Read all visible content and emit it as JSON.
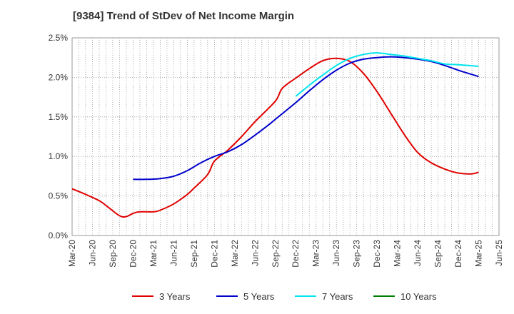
{
  "chart_data": {
    "type": "line",
    "title": "[9384]  Trend of StDev of Net Income Margin",
    "xlabel": "",
    "ylabel": "",
    "x_ticks": [
      "Mar-20",
      "Jun-20",
      "Sep-20",
      "Dec-20",
      "Mar-21",
      "Jun-21",
      "Sep-21",
      "Dec-21",
      "Mar-22",
      "Jun-22",
      "Sep-22",
      "Dec-22",
      "Mar-23",
      "Jun-23",
      "Sep-23",
      "Dec-23",
      "Mar-24",
      "Jun-24",
      "Sep-24",
      "Dec-24",
      "Mar-25",
      "Jun-25"
    ],
    "y_ticks": [
      "0.0%",
      "0.5%",
      "1.0%",
      "1.5%",
      "2.0%",
      "2.5%"
    ],
    "ylim": [
      0,
      2.5
    ],
    "grid": true,
    "legend_position": "bottom",
    "series": [
      {
        "name": "3 Years",
        "color": "#e00000",
        "points": [
          {
            "x": "Mar-20",
            "y": 0.59
          },
          {
            "x": "May-20",
            "y": 0.52
          },
          {
            "x": "Jul-20",
            "y": 0.44
          },
          {
            "x": "Aug-20",
            "y": 0.38
          },
          {
            "x": "Oct-20",
            "y": 0.25
          },
          {
            "x": "Nov-20",
            "y": 0.24
          },
          {
            "x": "Dec-20",
            "y": 0.28
          },
          {
            "x": "Jan-21",
            "y": 0.3
          },
          {
            "x": "Mar-21",
            "y": 0.3
          },
          {
            "x": "Apr-21",
            "y": 0.32
          },
          {
            "x": "Jun-21",
            "y": 0.4
          },
          {
            "x": "Aug-21",
            "y": 0.52
          },
          {
            "x": "Sep-21",
            "y": 0.6
          },
          {
            "x": "Nov-21",
            "y": 0.77
          },
          {
            "x": "Dec-21",
            "y": 0.94
          },
          {
            "x": "Feb-22",
            "y": 1.08
          },
          {
            "x": "Apr-22",
            "y": 1.25
          },
          {
            "x": "Jun-22",
            "y": 1.44
          },
          {
            "x": "Sep-22",
            "y": 1.7
          },
          {
            "x": "Oct-22",
            "y": 1.86
          },
          {
            "x": "Dec-22",
            "y": 1.99
          },
          {
            "x": "Feb-23",
            "y": 2.11
          },
          {
            "x": "Apr-23",
            "y": 2.21
          },
          {
            "x": "Jun-23",
            "y": 2.24
          },
          {
            "x": "Aug-23",
            "y": 2.2
          },
          {
            "x": "Oct-23",
            "y": 2.05
          },
          {
            "x": "Dec-23",
            "y": 1.82
          },
          {
            "x": "Feb-24",
            "y": 1.55
          },
          {
            "x": "Apr-24",
            "y": 1.28
          },
          {
            "x": "Jun-24",
            "y": 1.05
          },
          {
            "x": "Aug-24",
            "y": 0.92
          },
          {
            "x": "Oct-24",
            "y": 0.84
          },
          {
            "x": "Dec-24",
            "y": 0.79
          },
          {
            "x": "Feb-25",
            "y": 0.78
          },
          {
            "x": "Mar-25",
            "y": 0.8
          }
        ]
      },
      {
        "name": "5 Years",
        "color": "#0000cc",
        "points": [
          {
            "x": "Dec-20",
            "y": 0.71
          },
          {
            "x": "Feb-21",
            "y": 0.71
          },
          {
            "x": "Apr-21",
            "y": 0.72
          },
          {
            "x": "Jun-21",
            "y": 0.75
          },
          {
            "x": "Aug-21",
            "y": 0.82
          },
          {
            "x": "Oct-21",
            "y": 0.92
          },
          {
            "x": "Dec-21",
            "y": 1.0
          },
          {
            "x": "Feb-22",
            "y": 1.06
          },
          {
            "x": "Apr-22",
            "y": 1.15
          },
          {
            "x": "Jun-22",
            "y": 1.27
          },
          {
            "x": "Aug-22",
            "y": 1.4
          },
          {
            "x": "Oct-22",
            "y": 1.54
          },
          {
            "x": "Dec-22",
            "y": 1.68
          },
          {
            "x": "Feb-23",
            "y": 1.83
          },
          {
            "x": "Apr-23",
            "y": 1.97
          },
          {
            "x": "Jun-23",
            "y": 2.09
          },
          {
            "x": "Aug-23",
            "y": 2.18
          },
          {
            "x": "Oct-23",
            "y": 2.23
          },
          {
            "x": "Dec-23",
            "y": 2.25
          },
          {
            "x": "Feb-24",
            "y": 2.26
          },
          {
            "x": "Apr-24",
            "y": 2.25
          },
          {
            "x": "Jun-24",
            "y": 2.23
          },
          {
            "x": "Aug-24",
            "y": 2.2
          },
          {
            "x": "Oct-24",
            "y": 2.15
          },
          {
            "x": "Dec-24",
            "y": 2.09
          },
          {
            "x": "Mar-25",
            "y": 2.01
          }
        ]
      },
      {
        "name": "7 Years",
        "color": "#00e5ee",
        "points": [
          {
            "x": "Dec-22",
            "y": 1.76
          },
          {
            "x": "Feb-23",
            "y": 1.9
          },
          {
            "x": "Apr-23",
            "y": 2.03
          },
          {
            "x": "Jun-23",
            "y": 2.15
          },
          {
            "x": "Aug-23",
            "y": 2.24
          },
          {
            "x": "Oct-23",
            "y": 2.29
          },
          {
            "x": "Dec-23",
            "y": 2.31
          },
          {
            "x": "Feb-24",
            "y": 2.29
          },
          {
            "x": "Apr-24",
            "y": 2.27
          },
          {
            "x": "Jun-24",
            "y": 2.24
          },
          {
            "x": "Aug-24",
            "y": 2.21
          },
          {
            "x": "Oct-24",
            "y": 2.17
          },
          {
            "x": "Dec-24",
            "y": 2.16
          },
          {
            "x": "Mar-25",
            "y": 2.14
          }
        ]
      },
      {
        "name": "10 Years",
        "color": "#008000",
        "points": []
      }
    ]
  }
}
